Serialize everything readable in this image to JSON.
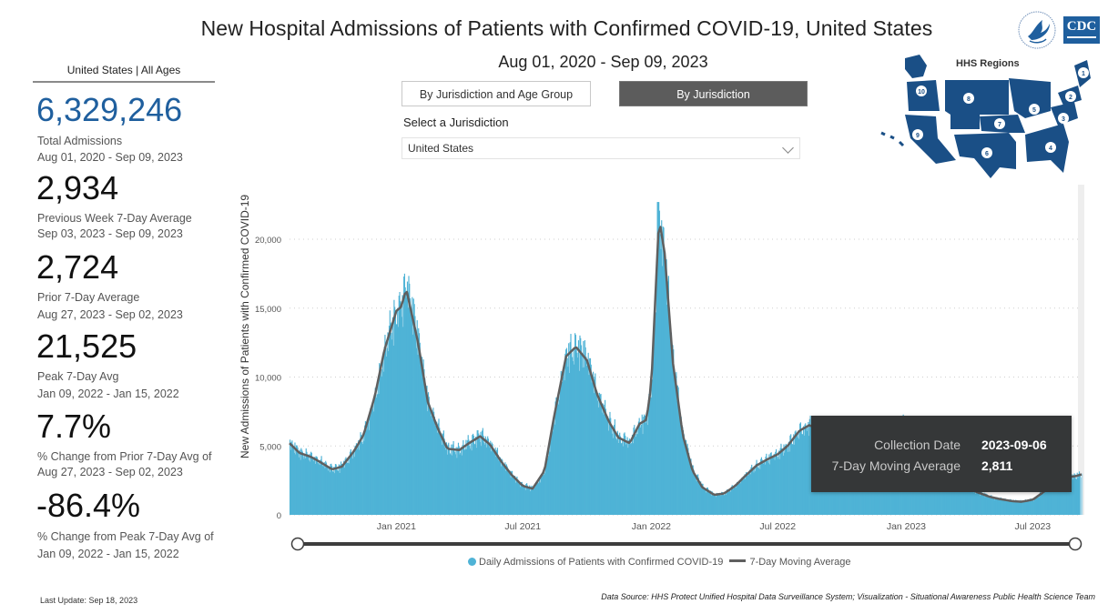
{
  "header": {
    "title": "New Hospital Admissions of Patients with Confirmed COVID-19, United States",
    "date_range": "Aug 01, 2020 - Sep 09, 2023"
  },
  "logos": {
    "hhs": "hhs-eagle-icon",
    "cdc": "CDC"
  },
  "kpis": {
    "scope": "United States | All Ages",
    "items": [
      {
        "value": "6,329,246",
        "label": "Total Admissions",
        "sublabel": "Aug 01, 2020 - Sep 09, 2023",
        "color": "#1f5f9e"
      },
      {
        "value": "2,934",
        "label": "Previous Week 7-Day Average",
        "sublabel": "Sep 03, 2023 - Sep 09, 2023"
      },
      {
        "value": "2,724",
        "label": "Prior 7-Day Average",
        "sublabel": "Aug 27, 2023 - Sep 02, 2023"
      },
      {
        "value": "21,525",
        "label": "Peak 7-Day Avg",
        "sublabel": "Jan 09, 2022 - Jan 15, 2022"
      },
      {
        "value": "7.7%",
        "label": "% Change from Prior 7-Day Avg of",
        "sublabel": "Aug 27, 2023 - Sep 02, 2023"
      },
      {
        "value": "-86.4%",
        "label": "% Change from Peak 7-Day Avg of",
        "sublabel": "Jan 09, 2022 - Jan 15, 2022"
      }
    ]
  },
  "tabs": [
    {
      "label": "By Jurisdiction and Age Group",
      "active": false
    },
    {
      "label": "By Jurisdiction",
      "active": true
    }
  ],
  "jurisdiction": {
    "label": "Select a Jurisdiction",
    "selected": "United States"
  },
  "map": {
    "title": "HHS Regions",
    "regions": [
      "1",
      "2",
      "3",
      "4",
      "5",
      "6",
      "7",
      "8",
      "9",
      "10"
    ]
  },
  "tooltip": {
    "rows": [
      {
        "key": "Collection Date",
        "value": "2023-09-06"
      },
      {
        "key": "7-Day Moving Average",
        "value": "2,811"
      }
    ]
  },
  "legend": {
    "bar_label": "Daily Admissions of Patients with Confirmed COVID-19",
    "line_label": "7-Day Moving Average"
  },
  "footer": {
    "last_update": "Last Update: Sep 18, 2023",
    "source": "Data Source: HHS Protect Unified Hospital Data Surveillance System; Visualization - Situational Awareness Public Health Science Team"
  },
  "colors": {
    "bar": "#4fb3d6",
    "line": "#5f5f5f",
    "accent": "#1f5f9e",
    "tooltip_bg": "#353738"
  },
  "chart_data": {
    "type": "bar",
    "title": "New Hospital Admissions of Patients with Confirmed COVID-19, United States",
    "xlabel": "",
    "ylabel": "New Admissions of Patients with Confirmed COVID-19",
    "x_start": "2020-08-01",
    "x_end": "2023-09-09",
    "ylim": [
      0,
      22800
    ],
    "y_ticks": [
      0,
      5000,
      10000,
      15000,
      20000
    ],
    "y_tick_labels": [
      "0",
      "5,000",
      "10,000",
      "15,000",
      "20,000"
    ],
    "x_ticks": [
      "2021-01-01",
      "2021-07-01",
      "2022-01-01",
      "2022-07-01",
      "2023-01-01",
      "2023-07-01"
    ],
    "x_tick_labels": [
      "Jan 2021",
      "Jul 2021",
      "Jan 2022",
      "Jul 2022",
      "Jan 2023",
      "Jul 2023"
    ],
    "grid": true,
    "legend": "bottom",
    "series": [
      {
        "name": "7-Day Moving Average",
        "type": "line",
        "dates": [
          "2020-08-01",
          "2020-08-15",
          "2020-09-01",
          "2020-09-15",
          "2020-10-01",
          "2020-10-15",
          "2020-11-01",
          "2020-11-15",
          "2020-12-01",
          "2020-12-15",
          "2021-01-01",
          "2021-01-08",
          "2021-01-15",
          "2021-02-01",
          "2021-02-15",
          "2021-03-01",
          "2021-03-15",
          "2021-04-01",
          "2021-04-15",
          "2021-05-01",
          "2021-05-15",
          "2021-06-01",
          "2021-06-15",
          "2021-07-01",
          "2021-07-15",
          "2021-08-01",
          "2021-08-15",
          "2021-09-01",
          "2021-09-15",
          "2021-10-01",
          "2021-10-15",
          "2021-11-01",
          "2021-11-15",
          "2021-12-01",
          "2021-12-15",
          "2021-12-25",
          "2022-01-01",
          "2022-01-12",
          "2022-01-20",
          "2022-02-01",
          "2022-02-15",
          "2022-03-01",
          "2022-03-15",
          "2022-04-01",
          "2022-04-15",
          "2022-05-01",
          "2022-05-15",
          "2022-06-01",
          "2022-06-15",
          "2022-07-01",
          "2022-07-15",
          "2022-08-01",
          "2022-08-15",
          "2022-09-01",
          "2022-09-15",
          "2022-10-01",
          "2022-10-15",
          "2022-11-01",
          "2022-11-15",
          "2022-12-01",
          "2022-12-15",
          "2023-01-01",
          "2023-01-15",
          "2023-02-01",
          "2023-02-15",
          "2023-03-01",
          "2023-03-15",
          "2023-04-01",
          "2023-04-15",
          "2023-05-01",
          "2023-05-15",
          "2023-06-01",
          "2023-06-15",
          "2023-07-01",
          "2023-07-15",
          "2023-08-01",
          "2023-08-15",
          "2023-09-01",
          "2023-09-09"
        ],
        "values": [
          5200,
          4500,
          4200,
          3800,
          3300,
          3500,
          4600,
          5800,
          8600,
          12000,
          14800,
          15100,
          16400,
          12500,
          8200,
          6300,
          4800,
          4700,
          5200,
          5700,
          5100,
          3800,
          2900,
          2100,
          1900,
          3200,
          7200,
          11500,
          12200,
          11200,
          8800,
          6800,
          5600,
          5200,
          6600,
          6900,
          9500,
          21525,
          19000,
          11000,
          5800,
          3200,
          2000,
          1450,
          1550,
          2100,
          2800,
          3600,
          4000,
          4400,
          5000,
          6100,
          6500,
          6200,
          5800,
          4900,
          4200,
          4100,
          4400,
          5800,
          6400,
          6600,
          5700,
          4500,
          3600,
          3000,
          2500,
          1900,
          1600,
          1300,
          1150,
          1000,
          950,
          1100,
          1600,
          2300,
          2700,
          2811,
          2934
        ]
      },
      {
        "name": "Daily Admissions of Patients with Confirmed COVID-19",
        "type": "bar",
        "note": "daily bars follow the 7-day average with day-to-day variation",
        "peak_daily": 22700
      }
    ]
  }
}
